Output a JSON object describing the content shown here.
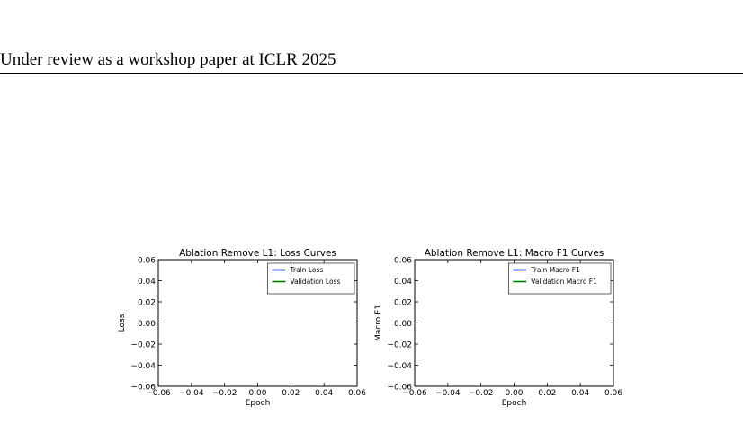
{
  "header": {
    "text": "Under review as a workshop paper at ICLR 2025"
  },
  "chart_data": [
    {
      "type": "line",
      "title": "Ablation Remove L1: Loss Curves",
      "xlabel": "Epoch",
      "ylabel": "Loss",
      "xlim": [
        -0.06,
        0.06
      ],
      "ylim": [
        -0.06,
        0.06
      ],
      "x_ticks": [
        "−0.06",
        "−0.04",
        "−0.02",
        "0.00",
        "0.02",
        "0.04",
        "0.06"
      ],
      "y_ticks": [
        "0.06",
        "0.04",
        "0.02",
        "0.00",
        "−0.02",
        "−0.04",
        "−0.06"
      ],
      "legend_position": "top-right",
      "series": [
        {
          "name": "Train Loss",
          "color": "#0000ff",
          "x": [],
          "y": []
        },
        {
          "name": "Validation Loss",
          "color": "#008000",
          "x": [],
          "y": []
        }
      ]
    },
    {
      "type": "line",
      "title": "Ablation Remove L1: Macro F1 Curves",
      "xlabel": "Epoch",
      "ylabel": "Macro F1",
      "xlim": [
        -0.06,
        0.06
      ],
      "ylim": [
        -0.06,
        0.06
      ],
      "x_ticks": [
        "−0.06",
        "−0.04",
        "−0.02",
        "0.00",
        "0.02",
        "0.04",
        "0.06"
      ],
      "y_ticks": [
        "0.06",
        "0.04",
        "0.02",
        "0.00",
        "−0.02",
        "−0.04",
        "−0.06"
      ],
      "legend_position": "top-right",
      "series": [
        {
          "name": "Train Macro F1",
          "color": "#0000ff",
          "x": [],
          "y": []
        },
        {
          "name": "Validation Macro F1",
          "color": "#008000",
          "x": [],
          "y": []
        }
      ]
    }
  ]
}
